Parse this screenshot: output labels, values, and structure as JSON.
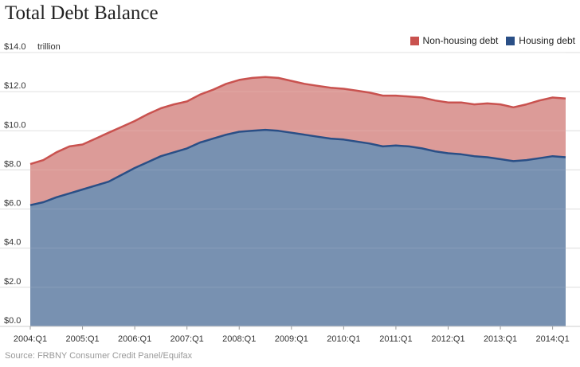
{
  "title": "Total Debt Balance",
  "source": "Source: FRBNY Consumer Credit Panel/Equifax",
  "colors": {
    "non_housing": "#c9524f",
    "housing": "#2a4f86",
    "non_housing_fill": "#dc9b98",
    "housing_fill": "#7891b1",
    "grid": "#dddddd"
  },
  "chart_data": {
    "type": "area",
    "title": "Total Debt Balance",
    "xlabel": "",
    "ylabel": "",
    "y_unit": "trillion",
    "ylim": [
      0,
      14
    ],
    "ytick_labels": [
      "$0.0",
      "$2.0",
      "$4.0",
      "$6.0",
      "$8.0",
      "$10.0",
      "$12.0",
      "$14.0"
    ],
    "ytick_values": [
      0,
      2,
      4,
      6,
      8,
      10,
      12,
      14
    ],
    "xtick_labels": [
      "2004:Q1",
      "2005:Q1",
      "2006:Q1",
      "2007:Q1",
      "2008:Q1",
      "2009:Q1",
      "2010:Q1",
      "2011:Q1",
      "2012:Q1",
      "2013:Q1",
      "2014:Q1"
    ],
    "xtick_index": [
      0,
      4,
      8,
      12,
      16,
      20,
      24,
      28,
      32,
      36,
      40
    ],
    "stacked": true,
    "grid": true,
    "legend_position": "top-right",
    "x": [
      "2004:Q1",
      "2004:Q2",
      "2004:Q3",
      "2004:Q4",
      "2005:Q1",
      "2005:Q2",
      "2005:Q3",
      "2005:Q4",
      "2006:Q1",
      "2006:Q2",
      "2006:Q3",
      "2006:Q4",
      "2007:Q1",
      "2007:Q2",
      "2007:Q3",
      "2007:Q4",
      "2008:Q1",
      "2008:Q2",
      "2008:Q3",
      "2008:Q4",
      "2009:Q1",
      "2009:Q2",
      "2009:Q3",
      "2009:Q4",
      "2010:Q1",
      "2010:Q2",
      "2010:Q3",
      "2010:Q4",
      "2011:Q1",
      "2011:Q2",
      "2011:Q3",
      "2011:Q4",
      "2012:Q1",
      "2012:Q2",
      "2012:Q3",
      "2012:Q4",
      "2013:Q1",
      "2013:Q2",
      "2013:Q3",
      "2013:Q4",
      "2014:Q1",
      "2014:Q2"
    ],
    "series": [
      {
        "name": "Housing debt",
        "values": [
          6.2,
          6.35,
          6.6,
          6.8,
          7.0,
          7.2,
          7.4,
          7.75,
          8.1,
          8.4,
          8.7,
          8.9,
          9.1,
          9.4,
          9.6,
          9.8,
          9.95,
          10.0,
          10.05,
          10.0,
          9.9,
          9.8,
          9.7,
          9.6,
          9.55,
          9.45,
          9.35,
          9.2,
          9.25,
          9.2,
          9.1,
          8.95,
          8.85,
          8.8,
          8.7,
          8.65,
          8.55,
          8.45,
          8.5,
          8.6,
          8.7,
          8.65
        ]
      },
      {
        "name": "Non-housing debt",
        "values": [
          2.1,
          2.15,
          2.3,
          2.4,
          2.3,
          2.4,
          2.5,
          2.45,
          2.4,
          2.45,
          2.45,
          2.45,
          2.4,
          2.45,
          2.5,
          2.6,
          2.65,
          2.7,
          2.7,
          2.7,
          2.65,
          2.6,
          2.6,
          2.6,
          2.6,
          2.6,
          2.6,
          2.6,
          2.55,
          2.55,
          2.6,
          2.6,
          2.6,
          2.65,
          2.65,
          2.75,
          2.8,
          2.75,
          2.85,
          2.95,
          3.0,
          3.0
        ]
      }
    ]
  }
}
